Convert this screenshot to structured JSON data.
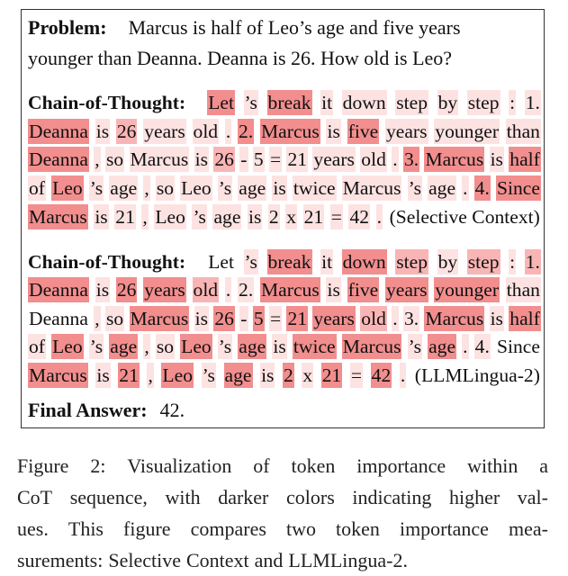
{
  "problem": {
    "label": "Problem:",
    "lines": [
      "Marcus is half of Leo’s age and five years",
      "younger than Deanna. Deanna is 26. How old is Leo?"
    ]
  },
  "cot_label": "Chain-of-Thought:",
  "heat_colors": [
    "#ffffff",
    "#fde2e2",
    "#f9b5b5",
    "#f28e8e"
  ],
  "selective": {
    "method": "(Selective Context)",
    "lines": [
      [
        [
          "Let",
          3
        ],
        [
          "’s",
          1
        ],
        [
          "break",
          3
        ],
        [
          "it",
          1
        ],
        [
          "down",
          1
        ],
        [
          "step",
          1
        ],
        [
          "by",
          1
        ],
        [
          "step",
          1
        ],
        [
          ":",
          1
        ],
        [
          "1.",
          1
        ]
      ],
      [
        [
          "Deanna",
          3
        ],
        [
          "is",
          1
        ],
        [
          "26",
          2
        ],
        [
          "years",
          1
        ],
        [
          "old",
          1
        ],
        [
          ".",
          1
        ],
        [
          "2.",
          3
        ],
        [
          "Marcus",
          3
        ],
        [
          "is",
          1
        ],
        [
          "five",
          3
        ],
        [
          "years",
          1
        ],
        [
          "younger",
          1
        ],
        [
          "than",
          1
        ]
      ],
      [
        [
          "Deanna",
          3
        ],
        [
          ",",
          1
        ],
        [
          "so",
          1
        ],
        [
          "Marcus",
          1
        ],
        [
          "is",
          1
        ],
        [
          "26",
          2
        ],
        [
          "-",
          1
        ],
        [
          "5",
          1
        ],
        [
          "=",
          1
        ],
        [
          "21",
          1
        ],
        [
          "years",
          1
        ],
        [
          "old",
          1
        ],
        [
          ".",
          1
        ],
        [
          "3.",
          3
        ],
        [
          "Marcus",
          3
        ],
        [
          "is",
          1
        ],
        [
          "half",
          3
        ]
      ],
      [
        [
          "of",
          1
        ],
        [
          "Leo",
          3
        ],
        [
          "’s",
          1
        ],
        [
          "age",
          1
        ],
        [
          ",",
          1
        ],
        [
          "so",
          1
        ],
        [
          "Leo",
          1
        ],
        [
          "’s",
          1
        ],
        [
          "age",
          1
        ],
        [
          "is",
          1
        ],
        [
          "twice",
          1
        ],
        [
          "Marcus",
          1
        ],
        [
          "’s",
          1
        ],
        [
          "age",
          1
        ],
        [
          ".",
          1
        ],
        [
          "4.",
          3
        ],
        [
          "Since",
          3
        ]
      ],
      [
        [
          "Marcus",
          3
        ],
        [
          "is",
          1
        ],
        [
          "21",
          1
        ],
        [
          ",",
          1
        ],
        [
          "Leo",
          1
        ],
        [
          "’s",
          1
        ],
        [
          "age",
          1
        ],
        [
          "is",
          1
        ],
        [
          "2",
          1
        ],
        [
          "x",
          1
        ],
        [
          "21",
          1
        ],
        [
          "=",
          1
        ],
        [
          "42",
          1
        ],
        [
          ".",
          1
        ],
        [
          "(Selective Context)",
          0
        ]
      ]
    ]
  },
  "llmlingua": {
    "method": "(LLMLingua-2)",
    "lines": [
      [
        [
          "Let",
          0
        ],
        [
          "’s",
          1
        ],
        [
          "break",
          3
        ],
        [
          "it",
          1
        ],
        [
          "down",
          3
        ],
        [
          "step",
          2
        ],
        [
          "by",
          1
        ],
        [
          "step",
          2
        ],
        [
          ":",
          1
        ],
        [
          "1.",
          2
        ]
      ],
      [
        [
          "Deanna",
          3
        ],
        [
          "is",
          1
        ],
        [
          "26",
          3
        ],
        [
          "years",
          3
        ],
        [
          "old",
          2
        ],
        [
          ".",
          1
        ],
        [
          "2.",
          1
        ],
        [
          "Marcus",
          3
        ],
        [
          "is",
          1
        ],
        [
          "five",
          3
        ],
        [
          "years",
          3
        ],
        [
          "younger",
          3
        ],
        [
          "than",
          1
        ]
      ],
      [
        [
          "Deanna",
          0
        ],
        [
          ",",
          1
        ],
        [
          "so",
          1
        ],
        [
          "Marcus",
          3
        ],
        [
          "is",
          1
        ],
        [
          "26",
          3
        ],
        [
          "-",
          1
        ],
        [
          "5",
          3
        ],
        [
          "=",
          1
        ],
        [
          "21",
          3
        ],
        [
          "years",
          3
        ],
        [
          "old",
          2
        ],
        [
          ".",
          1
        ],
        [
          "3.",
          1
        ],
        [
          "Marcus",
          3
        ],
        [
          "is",
          1
        ],
        [
          "half",
          3
        ]
      ],
      [
        [
          "of",
          1
        ],
        [
          "Leo",
          3
        ],
        [
          "’s",
          1
        ],
        [
          "age",
          3
        ],
        [
          ",",
          1
        ],
        [
          "so",
          1
        ],
        [
          "Leo",
          3
        ],
        [
          "’s",
          1
        ],
        [
          "age",
          3
        ],
        [
          "is",
          1
        ],
        [
          "twice",
          3
        ],
        [
          "Marcus",
          3
        ],
        [
          "’s",
          1
        ],
        [
          "age",
          3
        ],
        [
          ".",
          1
        ],
        [
          "4.",
          1
        ],
        [
          "Since",
          0
        ]
      ],
      [
        [
          "Marcus",
          3
        ],
        [
          "is",
          1
        ],
        [
          "21",
          3
        ],
        [
          ",",
          1
        ],
        [
          "Leo",
          3
        ],
        [
          "’s",
          1
        ],
        [
          "age",
          3
        ],
        [
          "is",
          1
        ],
        [
          "2",
          3
        ],
        [
          "x",
          1
        ],
        [
          "21",
          3
        ],
        [
          "=",
          1
        ],
        [
          "42",
          3
        ],
        [
          ".",
          1
        ],
        [
          "(LLMLingua-2)",
          0
        ]
      ]
    ]
  },
  "final_answer": {
    "label": "Final Answer:",
    "value": "42."
  },
  "caption": {
    "lines": [
      [
        "Figure",
        "2:",
        "Visualization",
        "of",
        "token",
        "importance",
        "within",
        "a"
      ],
      [
        "CoT",
        "sequence,",
        "with",
        "darker",
        "colors",
        "indicating",
        "higher",
        "val-"
      ],
      [
        "ues.",
        "This",
        "figure",
        "compares",
        "two",
        "token",
        "importance",
        "mea-"
      ],
      [
        "surements:",
        "Selective",
        "Context",
        "and",
        "LLMLingua-2."
      ]
    ]
  }
}
